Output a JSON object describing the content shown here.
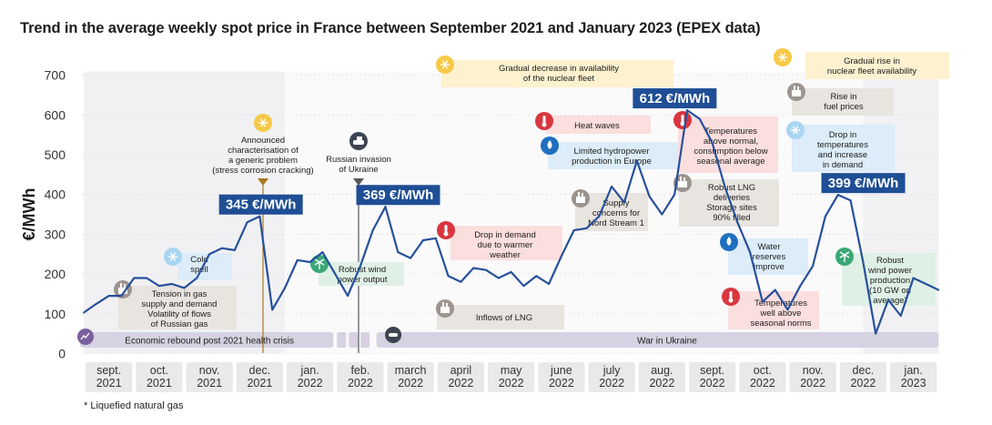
{
  "title": "Trend in the average weekly spot price in France between September 2021 and January 2023 (EPEX data)",
  "footnote": "* Liquefied natural gas",
  "colors": {
    "line": "#27509b",
    "label_bg": "#1f4e95",
    "timeline_bg": "#d6d2e2",
    "grey_box": "#e8e4df",
    "pink_box": "#fbdede",
    "blue_box": "#dcecf9",
    "green_box": "#dff0e6",
    "yellow_box": "#fdf1cf"
  },
  "chart_data": {
    "type": "line",
    "title": "Trend in the average weekly spot price in France between September 2021 and January 2023 (EPEX data)",
    "xlabel": "",
    "ylabel": "€/MWh",
    "ylim": [
      0,
      700
    ],
    "yticks": [
      0,
      100,
      200,
      300,
      400,
      500,
      600,
      700
    ],
    "months": [
      {
        "line1": "sept.",
        "line2": "2021"
      },
      {
        "line1": "oct.",
        "line2": "2021"
      },
      {
        "line1": "nov.",
        "line2": "2021"
      },
      {
        "line1": "dec.",
        "line2": "2021"
      },
      {
        "line1": "jan.",
        "line2": "2022"
      },
      {
        "line1": "feb.",
        "line2": "2022"
      },
      {
        "line1": "march",
        "line2": "2022"
      },
      {
        "line1": "april",
        "line2": "2022"
      },
      {
        "line1": "may",
        "line2": "2022"
      },
      {
        "line1": "june",
        "line2": "2022"
      },
      {
        "line1": "july",
        "line2": "2022"
      },
      {
        "line1": "aug.",
        "line2": "2022"
      },
      {
        "line1": "sept.",
        "line2": "2022"
      },
      {
        "line1": "oct.",
        "line2": "2022"
      },
      {
        "line1": "nov.",
        "line2": "2022"
      },
      {
        "line1": "dec.",
        "line2": "2022"
      },
      {
        "line1": "jan.",
        "line2": "2023"
      }
    ],
    "series": [
      {
        "x_month": [
          0,
          0.25,
          0.5,
          0.75,
          1,
          1.25,
          1.5,
          1.75,
          2,
          2.25,
          2.5,
          2.75,
          3,
          3.25,
          3.5,
          3.75,
          4,
          4.25,
          4.5,
          4.75,
          5,
          5.25,
          5.5,
          5.75,
          6,
          6.25,
          6.5,
          6.75,
          7,
          7.25,
          7.5,
          7.75,
          8,
          8.25,
          8.5,
          8.75,
          9,
          9.25,
          9.5,
          9.75,
          10,
          10.25,
          10.5,
          10.75,
          11,
          11.25,
          11.5,
          11.75,
          12,
          12.25,
          12.5,
          12.75,
          13,
          13.25,
          13.5,
          13.75,
          14,
          14.25,
          14.5,
          14.75,
          15,
          15.25,
          15.5,
          15.75,
          16,
          16.25,
          16.5,
          16.75,
          17
        ],
        "y": [
          103,
          125,
          145,
          145,
          190,
          190,
          170,
          175,
          165,
          190,
          250,
          265,
          260,
          330,
          345,
          110,
          165,
          235,
          230,
          255,
          200,
          145,
          220,
          310,
          369,
          255,
          240,
          285,
          290,
          195,
          180,
          215,
          210,
          190,
          205,
          170,
          195,
          175,
          245,
          310,
          315,
          345,
          420,
          380,
          485,
          395,
          350,
          400,
          612,
          590,
          530,
          420,
          330,
          255,
          130,
          160,
          110,
          170,
          220,
          345,
          399,
          385,
          230,
          50,
          135,
          95,
          190,
          175,
          160
        ],
        "peak_labels": [
          {
            "x_month": 3.27,
            "y": 345,
            "text": "345 €/MWh"
          },
          {
            "x_month": 6.0,
            "y": 369,
            "text": "369 €/MWh"
          },
          {
            "x_month": 11.5,
            "y": 612,
            "text": "612 €/MWh"
          },
          {
            "x_month": 15.25,
            "y": 399,
            "text": "399 €/MWh"
          }
        ]
      }
    ]
  },
  "timeline": {
    "rebound": "Economic rebound post 2021 health crisis",
    "war": "War in Ukraine"
  },
  "annotations": {
    "corrosion": [
      "Announced",
      "characterisation of",
      "a generic problem",
      "(stress corrosion cracking)"
    ],
    "invasion": [
      "Russian invasion",
      "of Ukraine"
    ],
    "cold_spell": [
      "Cold",
      "spell"
    ],
    "tension": [
      "Tension in gas",
      "supply and demand",
      "Volatility of flows",
      "of Russian gas"
    ],
    "robust_wind": [
      "Robust wind",
      "power output"
    ],
    "nuclear_decrease": [
      "Gradual decrease in availability",
      "of the nuclear fleet"
    ],
    "drop_demand": [
      "Drop in demand",
      "due to warmer",
      "weather"
    ],
    "inflows_lng": [
      "Inflows of LNG"
    ],
    "heat_waves": [
      "Heat waves"
    ],
    "hydropower": [
      "Limited hydropower",
      "production in Europe"
    ],
    "nord_stream": [
      "Supply",
      "concerns for",
      "Nord Stream 1"
    ],
    "temp_above": [
      "Temperatures",
      "above normal,",
      "consumption below",
      "seasonal average"
    ],
    "robust_lng": [
      "Robust LNG",
      "deliveries",
      "Storage sites",
      "90% filled"
    ],
    "water_reserves": [
      "Water",
      "reserves",
      "improve"
    ],
    "temp_well_above": [
      "Temperatures",
      "well above",
      "seasonal norms"
    ],
    "nuclear_rise": [
      "Gradual rise in",
      "nuclear fleet availability"
    ],
    "fuel_prices": [
      "Rise in",
      "fuel prices"
    ],
    "drop_temp": [
      "Drop in",
      "temperatures",
      "and increase",
      "in demand"
    ],
    "robust_wind_2": [
      "Robust",
      "wind power",
      "production",
      "(10 GW on",
      "average)"
    ]
  }
}
